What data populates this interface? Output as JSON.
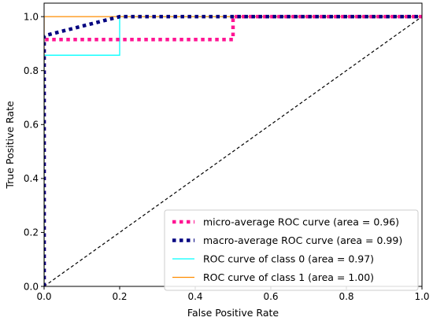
{
  "chart_data": {
    "type": "line",
    "title": "",
    "xlabel": "False Positive Rate",
    "ylabel": "True Positive Rate",
    "xlim": [
      0.0,
      1.0
    ],
    "ylim": [
      0.0,
      1.05
    ],
    "xticks": [
      "0.0",
      "0.2",
      "0.4",
      "0.6",
      "0.8",
      "1.0"
    ],
    "yticks": [
      "0.0",
      "0.2",
      "0.4",
      "0.6",
      "0.8",
      "1.0"
    ],
    "grid": false,
    "legend_position": "lower-right",
    "series": [
      {
        "name": "micro-average ROC curve (area = 0.96)",
        "color": "#ff1493",
        "style": "dotted",
        "x": [
          0.0,
          0.0,
          0.5,
          0.5,
          1.0
        ],
        "y": [
          0.0,
          0.915,
          0.915,
          1.0,
          1.0
        ]
      },
      {
        "name": "macro-average ROC curve (area = 0.99)",
        "color": "#000080",
        "style": "dotted",
        "x": [
          0.0,
          0.0,
          0.2,
          1.0
        ],
        "y": [
          0.0,
          0.929,
          1.0,
          1.0
        ]
      },
      {
        "name": "ROC curve of class 0 (area = 0.97)",
        "color": "#00ffff",
        "style": "solid",
        "x": [
          0.0,
          0.0,
          0.2,
          0.2,
          1.0
        ],
        "y": [
          0.0,
          0.857,
          0.857,
          1.0,
          1.0
        ]
      },
      {
        "name": "ROC curve of class 1 (area = 1.00)",
        "color": "#ff8c00",
        "style": "solid",
        "x": [
          0.0,
          0.0,
          1.0
        ],
        "y": [
          0.0,
          1.0,
          1.0
        ]
      },
      {
        "name": "",
        "color": "#000000",
        "style": "dashed",
        "x": [
          0.0,
          1.0
        ],
        "y": [
          0.0,
          1.0
        ]
      }
    ]
  }
}
